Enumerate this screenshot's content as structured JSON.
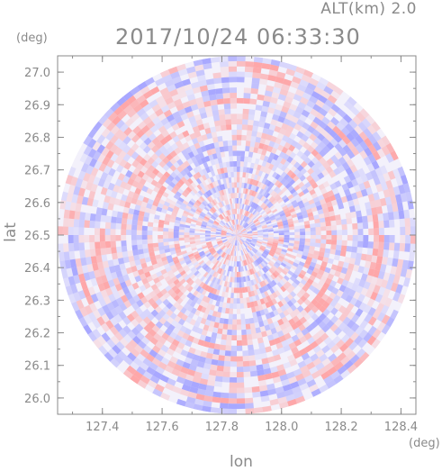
{
  "header": {
    "alt_label": "ALT(km) 2.0",
    "timestamp": "2017/10/24 06:33:30"
  },
  "chart_data": {
    "type": "heatmap",
    "title": "2017/10/24 06:33:30",
    "subtitle": "ALT(km) 2.0",
    "xlabel": "lon",
    "ylabel": "lat",
    "x_unit": "(deg)",
    "y_unit": "(deg)",
    "xlim": [
      127.25,
      128.45
    ],
    "ylim": [
      25.95,
      27.05
    ],
    "x_ticks": [
      127.4,
      127.6,
      127.8,
      128.0,
      128.2,
      128.4
    ],
    "x_tick_labels": [
      "127.4",
      "127.6",
      "127.8",
      "128.0",
      "128.2",
      "128.4"
    ],
    "y_ticks": [
      26.0,
      26.1,
      26.2,
      26.3,
      26.4,
      26.5,
      26.6,
      26.7,
      26.8,
      26.9,
      27.0
    ],
    "y_tick_labels": [
      "26.0",
      "26.1",
      "26.2",
      "26.3",
      "26.4",
      "26.5",
      "26.6",
      "26.7",
      "26.8",
      "26.9",
      "27.0"
    ],
    "radar_center": [
      127.85,
      26.5
    ],
    "radar_radius_deg_lat": 0.55,
    "grid": false,
    "colors": {
      "positive": "#ff9a9a",
      "negative": "#9a9aff",
      "axis": "#8a8a8a"
    }
  }
}
